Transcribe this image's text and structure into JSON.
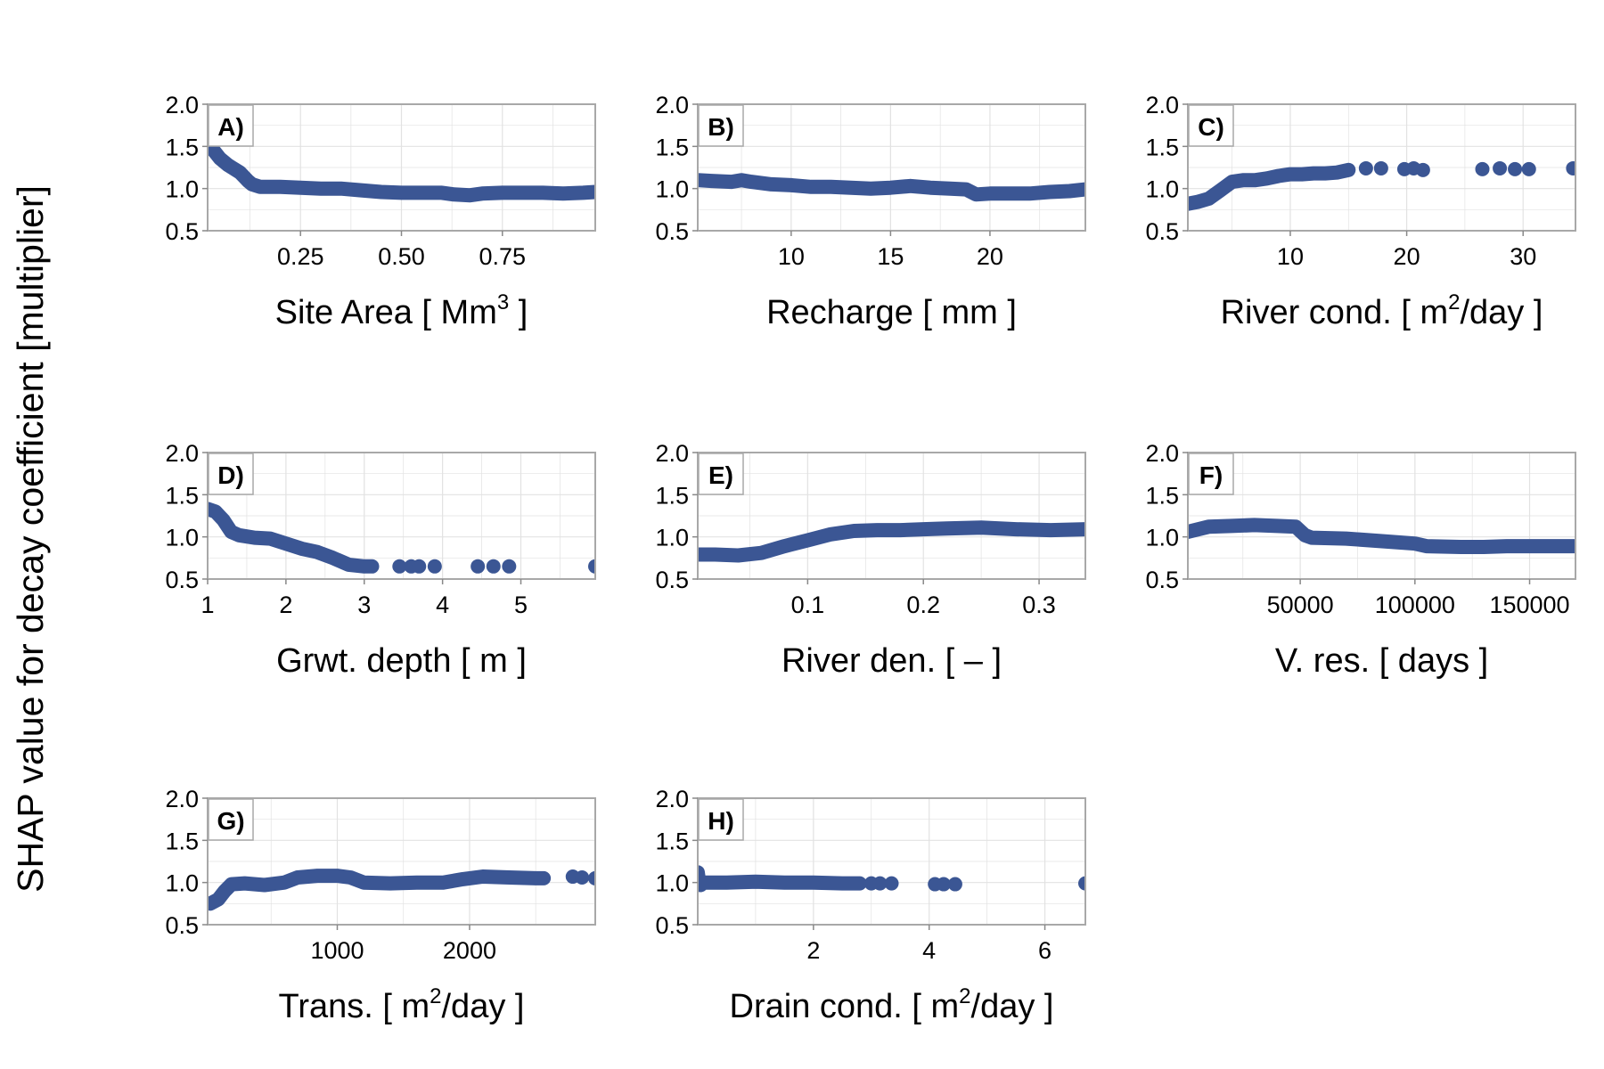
{
  "figure": {
    "ylabel": "SHAP value for decay coefficient [multiplier]",
    "point_color": "#3b5694",
    "panel_border_color": "#a8a8a8",
    "grid_color": "#e2e2e2"
  },
  "chart_data": [
    {
      "type": "scatter",
      "label": "A)",
      "xlabel": "Site Area [ Mm3 ]",
      "xlabel_main": "Site Area [ Mm",
      "xlabel_sup": "3",
      "xlabel_tail": " ]",
      "xlim": [
        0.02,
        0.98
      ],
      "ylim": [
        0.5,
        2.0
      ],
      "xticks": [
        0.25,
        0.5,
        0.75
      ],
      "xtick_labels": [
        "0.25",
        "0.50",
        "0.75"
      ],
      "yticks": [
        0.5,
        1.0,
        1.5,
        2.0
      ],
      "ytick_labels": [
        "0.5",
        "1.0",
        "1.5",
        "2.0"
      ],
      "curve": [
        [
          0.03,
          1.48
        ],
        [
          0.04,
          1.42
        ],
        [
          0.05,
          1.36
        ],
        [
          0.06,
          1.32
        ],
        [
          0.07,
          1.28
        ],
        [
          0.08,
          1.25
        ],
        [
          0.09,
          1.22
        ],
        [
          0.1,
          1.19
        ],
        [
          0.11,
          1.14
        ],
        [
          0.12,
          1.09
        ],
        [
          0.13,
          1.05
        ],
        [
          0.15,
          1.02
        ],
        [
          0.2,
          1.02
        ],
        [
          0.25,
          1.01
        ],
        [
          0.3,
          1.0
        ],
        [
          0.35,
          1.0
        ],
        [
          0.4,
          0.98
        ],
        [
          0.45,
          0.96
        ],
        [
          0.5,
          0.95
        ],
        [
          0.55,
          0.95
        ],
        [
          0.6,
          0.95
        ],
        [
          0.63,
          0.93
        ],
        [
          0.67,
          0.92
        ],
        [
          0.7,
          0.94
        ],
        [
          0.75,
          0.95
        ],
        [
          0.8,
          0.95
        ],
        [
          0.85,
          0.95
        ],
        [
          0.9,
          0.94
        ],
        [
          0.95,
          0.95
        ],
        [
          0.98,
          0.96
        ]
      ]
    },
    {
      "type": "scatter",
      "label": "B)",
      "xlabel": "Recharge [ mm ]",
      "xlabel_main": "Recharge [ mm ]",
      "xlabel_sup": "",
      "xlabel_tail": "",
      "xlim": [
        5.3,
        24.8
      ],
      "ylim": [
        0.5,
        2.0
      ],
      "xticks": [
        10,
        15,
        20
      ],
      "xtick_labels": [
        "10",
        "15",
        "20"
      ],
      "yticks": [
        0.5,
        1.0,
        1.5,
        2.0
      ],
      "ytick_labels": [
        "0.5",
        "1.0",
        "1.5",
        "2.0"
      ],
      "curve": [
        [
          5.3,
          1.1
        ],
        [
          6,
          1.09
        ],
        [
          7,
          1.08
        ],
        [
          7.5,
          1.1
        ],
        [
          8,
          1.08
        ],
        [
          9,
          1.05
        ],
        [
          10,
          1.04
        ],
        [
          11,
          1.02
        ],
        [
          12,
          1.02
        ],
        [
          13,
          1.01
        ],
        [
          14,
          1.0
        ],
        [
          15,
          1.01
        ],
        [
          16,
          1.03
        ],
        [
          17,
          1.01
        ],
        [
          18,
          1.0
        ],
        [
          18.8,
          0.99
        ],
        [
          19.3,
          0.93
        ],
        [
          20,
          0.94
        ],
        [
          21,
          0.94
        ],
        [
          22,
          0.94
        ],
        [
          23,
          0.96
        ],
        [
          24,
          0.97
        ],
        [
          24.8,
          0.99
        ]
      ]
    },
    {
      "type": "scatter",
      "label": "C)",
      "xlabel": "River cond. [ m2/day ]",
      "xlabel_main": "River cond. [ m",
      "xlabel_sup": "2",
      "xlabel_tail": "/day ]",
      "xlim": [
        1.2,
        34.5
      ],
      "ylim": [
        0.5,
        2.0
      ],
      "xticks": [
        10,
        20,
        30
      ],
      "xtick_labels": [
        "10",
        "20",
        "30"
      ],
      "yticks": [
        0.5,
        1.0,
        1.5,
        2.0
      ],
      "ytick_labels": [
        "0.5",
        "1.0",
        "1.5",
        "2.0"
      ],
      "curve": [
        [
          1.2,
          0.82
        ],
        [
          2,
          0.84
        ],
        [
          3,
          0.88
        ],
        [
          4,
          0.98
        ],
        [
          5,
          1.08
        ],
        [
          6,
          1.1
        ],
        [
          7,
          1.1
        ],
        [
          8,
          1.12
        ],
        [
          9,
          1.15
        ],
        [
          10,
          1.17
        ],
        [
          11,
          1.17
        ],
        [
          12,
          1.18
        ],
        [
          13,
          1.18
        ],
        [
          14,
          1.19
        ],
        [
          15,
          1.22
        ]
      ],
      "points": [
        [
          16.5,
          1.24
        ],
        [
          17.8,
          1.24
        ],
        [
          19.8,
          1.23
        ],
        [
          20.6,
          1.24
        ],
        [
          21.4,
          1.22
        ],
        [
          26.5,
          1.23
        ],
        [
          28,
          1.24
        ],
        [
          29.3,
          1.23
        ],
        [
          30.5,
          1.23
        ],
        [
          34.3,
          1.24
        ]
      ]
    },
    {
      "type": "scatter",
      "label": "D)",
      "xlabel": "Grwt. depth [ m ]",
      "xlabel_main": "Grwt. depth [ m ]",
      "xlabel_sup": "",
      "xlabel_tail": "",
      "xlim": [
        1.0,
        5.95
      ],
      "ylim": [
        0.5,
        2.0
      ],
      "xticks": [
        1,
        2,
        3,
        4,
        5
      ],
      "xtick_labels": [
        "1",
        "2",
        "3",
        "4",
        "5"
      ],
      "yticks": [
        0.5,
        1.0,
        1.5,
        2.0
      ],
      "ytick_labels": [
        "0.5",
        "1.0",
        "1.5",
        "2.0"
      ],
      "curve": [
        [
          1.0,
          1.33
        ],
        [
          1.1,
          1.3
        ],
        [
          1.2,
          1.2
        ],
        [
          1.3,
          1.06
        ],
        [
          1.4,
          1.02
        ],
        [
          1.6,
          0.99
        ],
        [
          1.8,
          0.98
        ],
        [
          2.0,
          0.92
        ],
        [
          2.2,
          0.86
        ],
        [
          2.4,
          0.82
        ],
        [
          2.6,
          0.75
        ],
        [
          2.8,
          0.67
        ],
        [
          3.0,
          0.65
        ],
        [
          3.1,
          0.65
        ]
      ],
      "points": [
        [
          3.45,
          0.65
        ],
        [
          3.6,
          0.65
        ],
        [
          3.7,
          0.65
        ],
        [
          3.9,
          0.65
        ],
        [
          4.45,
          0.65
        ],
        [
          4.65,
          0.65
        ],
        [
          4.85,
          0.65
        ],
        [
          5.95,
          0.65
        ]
      ]
    },
    {
      "type": "scatter",
      "label": "E)",
      "xlabel": "River den. [ – ]",
      "xlabel_main": "River den. [ – ]",
      "xlabel_sup": "",
      "xlabel_tail": "",
      "xlim": [
        0.005,
        0.34
      ],
      "ylim": [
        0.5,
        2.0
      ],
      "xticks": [
        0.1,
        0.2,
        0.3
      ],
      "xtick_labels": [
        "0.1",
        "0.2",
        "0.3"
      ],
      "yticks": [
        0.5,
        1.0,
        1.5,
        2.0
      ],
      "ytick_labels": [
        "0.5",
        "1.0",
        "1.5",
        "2.0"
      ],
      "curve": [
        [
          0.005,
          0.79
        ],
        [
          0.02,
          0.79
        ],
        [
          0.04,
          0.78
        ],
        [
          0.06,
          0.81
        ],
        [
          0.08,
          0.89
        ],
        [
          0.1,
          0.96
        ],
        [
          0.12,
          1.03
        ],
        [
          0.14,
          1.07
        ],
        [
          0.16,
          1.08
        ],
        [
          0.18,
          1.08
        ],
        [
          0.2,
          1.09
        ],
        [
          0.22,
          1.1
        ],
        [
          0.25,
          1.11
        ],
        [
          0.28,
          1.09
        ],
        [
          0.31,
          1.08
        ],
        [
          0.34,
          1.09
        ]
      ]
    },
    {
      "type": "scatter",
      "label": "F)",
      "xlabel": "V. res. [ days ]",
      "xlabel_main": "V. res. [ days ]",
      "xlabel_sup": "",
      "xlabel_tail": "",
      "xlim": [
        1000,
        170000
      ],
      "ylim": [
        0.5,
        2.0
      ],
      "xticks": [
        50000,
        100000,
        150000
      ],
      "xtick_labels": [
        "50000",
        "100000",
        "150000"
      ],
      "yticks": [
        0.5,
        1.0,
        1.5,
        2.0
      ],
      "ytick_labels": [
        "0.5",
        "1.0",
        "1.5",
        "2.0"
      ],
      "curve": [
        [
          1000,
          1.06
        ],
        [
          10000,
          1.12
        ],
        [
          20000,
          1.13
        ],
        [
          30000,
          1.14
        ],
        [
          40000,
          1.13
        ],
        [
          48000,
          1.12
        ],
        [
          52000,
          1.02
        ],
        [
          55000,
          0.99
        ],
        [
          70000,
          0.98
        ],
        [
          85000,
          0.95
        ],
        [
          100000,
          0.92
        ],
        [
          105000,
          0.89
        ],
        [
          120000,
          0.88
        ],
        [
          130000,
          0.88
        ],
        [
          140000,
          0.89
        ],
        [
          155000,
          0.89
        ],
        [
          170000,
          0.89
        ]
      ]
    },
    {
      "type": "scatter",
      "label": "G)",
      "xlabel": "Trans. [ m2/day ]",
      "xlabel_main": "Trans. [ m",
      "xlabel_sup": "2",
      "xlabel_tail": "/day ]",
      "xlim": [
        20,
        2950
      ],
      "ylim": [
        0.5,
        2.0
      ],
      "xticks": [
        1000,
        2000
      ],
      "xtick_labels": [
        "1000",
        "2000"
      ],
      "yticks": [
        0.5,
        1.0,
        1.5,
        2.0
      ],
      "ytick_labels": [
        "0.5",
        "1.0",
        "1.5",
        "2.0"
      ],
      "curve": [
        [
          40,
          0.75
        ],
        [
          100,
          0.8
        ],
        [
          150,
          0.9
        ],
        [
          200,
          0.98
        ],
        [
          300,
          0.99
        ],
        [
          450,
          0.97
        ],
        [
          600,
          1.0
        ],
        [
          700,
          1.06
        ],
        [
          850,
          1.08
        ],
        [
          1000,
          1.08
        ],
        [
          1100,
          1.06
        ],
        [
          1200,
          1.0
        ],
        [
          1400,
          0.99
        ],
        [
          1600,
          1.0
        ],
        [
          1800,
          1.0
        ],
        [
          1950,
          1.04
        ],
        [
          2100,
          1.07
        ],
        [
          2300,
          1.06
        ],
        [
          2500,
          1.05
        ],
        [
          2560,
          1.05
        ]
      ],
      "points": [
        [
          2780,
          1.07
        ],
        [
          2850,
          1.06
        ],
        [
          2950,
          1.05
        ]
      ]
    },
    {
      "type": "scatter",
      "label": "H)",
      "xlabel": "Drain cond. [ m2/day ]",
      "xlabel_main": "Drain cond. [ m",
      "xlabel_sup": "2",
      "xlabel_tail": "/day ]",
      "xlim": [
        0.0,
        6.7
      ],
      "ylim": [
        0.5,
        2.0
      ],
      "xticks": [
        2,
        4,
        6
      ],
      "xtick_labels": [
        "2",
        "4",
        "6"
      ],
      "yticks": [
        0.5,
        1.0,
        1.5,
        2.0
      ],
      "ytick_labels": [
        "0.5",
        "1.0",
        "1.5",
        "2.0"
      ],
      "curve": [
        [
          0.0,
          1.12
        ],
        [
          0.02,
          1.02
        ],
        [
          0.05,
          0.97
        ],
        [
          0.1,
          1.0
        ],
        [
          0.5,
          1.0
        ],
        [
          1.0,
          1.01
        ],
        [
          1.5,
          1.0
        ],
        [
          2.0,
          1.0
        ],
        [
          2.5,
          0.99
        ],
        [
          2.8,
          0.99
        ]
      ],
      "points": [
        [
          3.0,
          0.99
        ],
        [
          3.15,
          0.99
        ],
        [
          3.35,
          0.99
        ],
        [
          4.1,
          0.98
        ],
        [
          4.25,
          0.98
        ],
        [
          4.45,
          0.98
        ],
        [
          6.7,
          0.99
        ]
      ]
    }
  ]
}
